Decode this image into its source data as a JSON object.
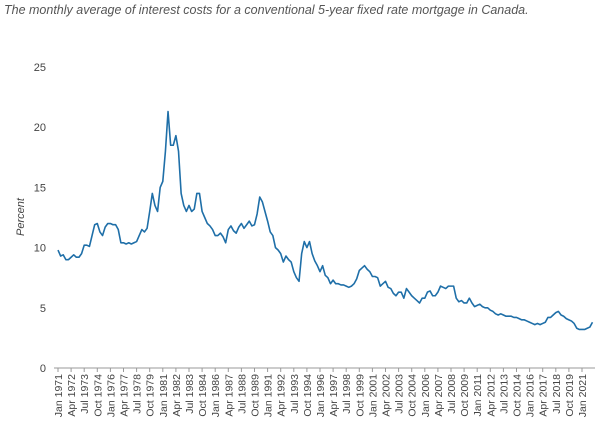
{
  "chart_data": {
    "type": "line",
    "title": "The monthly average of interest costs for a conventional 5-year fixed rate mortgage in Canada.",
    "y_label": "Percent",
    "categories": [
      "Jan 1971",
      null,
      null,
      null,
      null,
      "Apr 1972",
      null,
      null,
      null,
      null,
      "Jul 1973",
      null,
      null,
      null,
      null,
      "Oct 1974",
      null,
      null,
      null,
      null,
      "Jan 1976",
      null,
      null,
      null,
      null,
      "Apr 1977",
      null,
      null,
      null,
      null,
      "Jul 1978",
      null,
      null,
      null,
      null,
      "Oct 1979",
      null,
      null,
      null,
      null,
      "Jan 1981",
      null,
      null,
      null,
      null,
      "Apr 1982",
      null,
      null,
      null,
      null,
      "Jul 1983",
      null,
      null,
      null,
      null,
      "Oct 1984",
      null,
      null,
      null,
      null,
      "Jan 1986",
      null,
      null,
      null,
      null,
      "Apr 1987",
      null,
      null,
      null,
      null,
      "Jul 1988",
      null,
      null,
      null,
      null,
      "Oct 1989",
      null,
      null,
      null,
      null,
      "Jan 1991",
      null,
      null,
      null,
      null,
      "Apr 1992",
      null,
      null,
      null,
      null,
      "Jul 1993",
      null,
      null,
      null,
      null,
      "Oct 1994",
      null,
      null,
      null,
      null,
      "Jan 1996",
      null,
      null,
      null,
      null,
      "Apr 1997",
      null,
      null,
      null,
      null,
      "Jul 1998",
      null,
      null,
      null,
      null,
      "Oct 1999",
      null,
      null,
      null,
      null,
      "Jan 2001",
      null,
      null,
      null,
      null,
      "Apr 2002",
      null,
      null,
      null,
      null,
      "Jul 2003",
      null,
      null,
      null,
      null,
      "Oct 2004",
      null,
      null,
      null,
      null,
      "Jan 2006",
      null,
      null,
      null,
      null,
      "Apr 2007",
      null,
      null,
      null,
      null,
      "Jul 2008",
      null,
      null,
      null,
      null,
      "Oct 2009",
      null,
      null,
      null,
      null,
      "Jan 2011",
      null,
      null,
      null,
      null,
      "Apr 2012",
      null,
      null,
      null,
      null,
      "Jul 2013",
      null,
      null,
      null,
      null,
      "Oct 2014",
      null,
      null,
      null,
      null,
      "Jan 2016",
      null,
      null,
      null,
      null,
      "Apr 2017",
      null,
      null,
      null,
      null,
      "Jul 2018",
      null,
      null,
      null,
      null,
      "Oct 2019",
      null,
      null,
      null,
      null,
      "Jan 2021",
      null,
      null,
      null,
      null
    ],
    "series": [
      {
        "color": "#1f6fa8",
        "values": [
          9.8,
          9.3,
          9.4,
          9.0,
          9.0,
          9.2,
          9.4,
          9.2,
          9.2,
          9.5,
          10.2,
          10.2,
          10.1,
          11.0,
          11.9,
          12.0,
          11.3,
          11.0,
          11.7,
          12.0,
          12.0,
          11.9,
          11.9,
          11.5,
          10.4,
          10.4,
          10.3,
          10.4,
          10.3,
          10.4,
          10.5,
          11.0,
          11.5,
          11.3,
          11.6,
          13.0,
          14.5,
          13.5,
          13.0,
          15.0,
          15.5,
          18.0,
          21.3,
          18.5,
          18.5,
          19.3,
          18.0,
          14.5,
          13.5,
          13.0,
          13.5,
          13.0,
          13.2,
          14.5,
          14.5,
          13.0,
          12.5,
          12.0,
          11.8,
          11.5,
          11.0,
          11.0,
          11.2,
          10.9,
          10.4,
          11.5,
          11.8,
          11.4,
          11.2,
          11.7,
          12.0,
          11.6,
          11.9,
          12.2,
          11.8,
          11.9,
          12.8,
          14.2,
          13.8,
          13.0,
          12.2,
          11.3,
          11.0,
          10.0,
          9.8,
          9.5,
          8.8,
          9.3,
          9.0,
          8.8,
          8.0,
          7.5,
          7.2,
          9.5,
          10.5,
          10.0,
          10.5,
          9.5,
          8.9,
          8.5,
          8.0,
          8.5,
          7.7,
          7.5,
          7.0,
          7.3,
          7.0,
          7.0,
          6.9,
          6.9,
          6.8,
          6.7,
          6.8,
          7.0,
          7.4,
          8.1,
          8.3,
          8.5,
          8.2,
          8.0,
          7.6,
          7.6,
          7.5,
          6.8,
          7.0,
          7.2,
          6.7,
          6.6,
          6.2,
          6.0,
          6.3,
          6.3,
          5.8,
          6.6,
          6.3,
          6.0,
          5.8,
          5.6,
          5.4,
          5.8,
          5.8,
          6.3,
          6.4,
          6.0,
          6.0,
          6.3,
          6.8,
          6.7,
          6.6,
          6.8,
          6.8,
          6.8,
          5.8,
          5.5,
          5.6,
          5.4,
          5.4,
          5.8,
          5.4,
          5.1,
          5.2,
          5.3,
          5.1,
          5.0,
          5.0,
          4.8,
          4.7,
          4.5,
          4.4,
          4.5,
          4.4,
          4.3,
          4.3,
          4.3,
          4.2,
          4.2,
          4.1,
          4.0,
          4.0,
          3.9,
          3.8,
          3.7,
          3.6,
          3.7,
          3.6,
          3.7,
          3.8,
          4.2,
          4.2,
          4.4,
          4.6,
          4.7,
          4.4,
          4.3,
          4.1,
          4.0,
          3.9,
          3.7,
          3.3,
          3.2,
          3.2,
          3.2,
          3.3,
          3.4,
          3.8
        ]
      }
    ],
    "ylim": [
      0,
      25
    ],
    "yticks": [
      0,
      5,
      10,
      15,
      20,
      25
    ],
    "grid": false
  }
}
